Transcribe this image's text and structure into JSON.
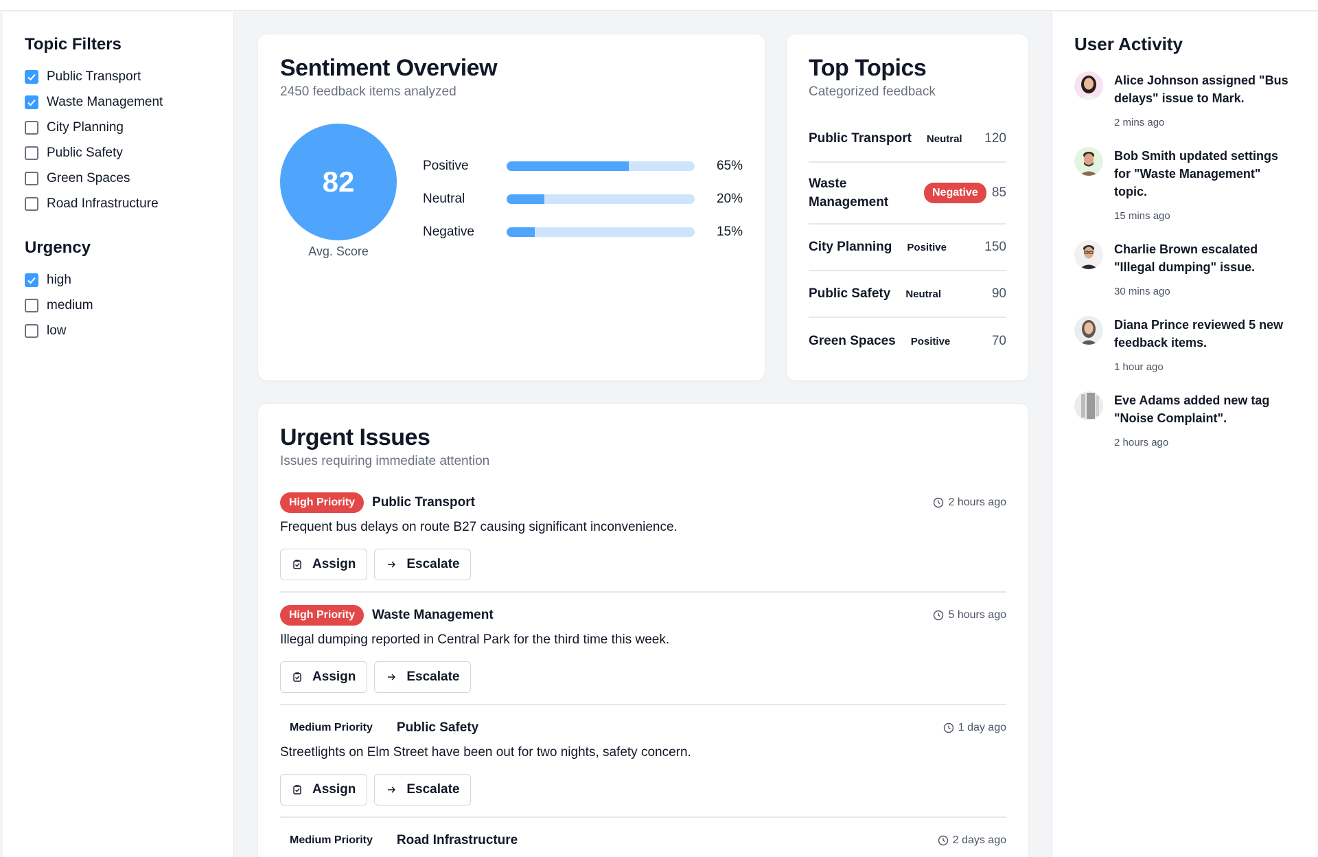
{
  "filters": {
    "topic_heading": "Topic Filters",
    "topics": [
      {
        "label": "Public Transport",
        "checked": true
      },
      {
        "label": "Waste Management",
        "checked": true
      },
      {
        "label": "City Planning",
        "checked": false
      },
      {
        "label": "Public Safety",
        "checked": false
      },
      {
        "label": "Green Spaces",
        "checked": false
      },
      {
        "label": "Road Infrastructure",
        "checked": false
      }
    ],
    "urgency_heading": "Urgency",
    "urgency": [
      {
        "label": "high",
        "checked": true
      },
      {
        "label": "medium",
        "checked": false
      },
      {
        "label": "low",
        "checked": false
      }
    ]
  },
  "sentiment": {
    "title": "Sentiment Overview",
    "subtitle": "2450 feedback items analyzed",
    "score": "82",
    "score_label": "Avg. Score",
    "bars": [
      {
        "label": "Positive",
        "value": 65,
        "pct": "65%"
      },
      {
        "label": "Neutral",
        "value": 20,
        "pct": "20%"
      },
      {
        "label": "Negative",
        "value": 15,
        "pct": "15%"
      }
    ]
  },
  "topics": {
    "title": "Top Topics",
    "subtitle": "Categorized feedback",
    "items": [
      {
        "name": "Public Transport",
        "sentiment": "Neutral",
        "count": "120"
      },
      {
        "name": "Waste Management",
        "sentiment": "Negative",
        "count": "85"
      },
      {
        "name": "City Planning",
        "sentiment": "Positive",
        "count": "150"
      },
      {
        "name": "Public Safety",
        "sentiment": "Neutral",
        "count": "90"
      },
      {
        "name": "Green Spaces",
        "sentiment": "Positive",
        "count": "70"
      }
    ]
  },
  "urgent": {
    "title": "Urgent Issues",
    "subtitle": "Issues requiring immediate attention",
    "assign_label": "Assign",
    "escalate_label": "Escalate",
    "issues": [
      {
        "priority": "High Priority",
        "topic": "Public Transport",
        "time": "2 hours ago",
        "desc": "Frequent bus delays on route B27 causing significant inconvenience."
      },
      {
        "priority": "High Priority",
        "topic": "Waste Management",
        "time": "5 hours ago",
        "desc": "Illegal dumping reported in Central Park for the third time this week."
      },
      {
        "priority": "Medium Priority",
        "topic": "Public Safety",
        "time": "1 day ago",
        "desc": "Streetlights on Elm Street have been out for two nights, safety concern."
      },
      {
        "priority": "Medium Priority",
        "topic": "Road Infrastructure",
        "time": "2 days ago",
        "desc": ""
      }
    ]
  },
  "activity": {
    "title": "User Activity",
    "items": [
      {
        "text": "Alice Johnson assigned \"Bus delays\" issue to Mark.",
        "time": "2 mins ago"
      },
      {
        "text": "Bob Smith updated settings for \"Waste Management\" topic.",
        "time": "15 mins ago"
      },
      {
        "text": "Charlie Brown escalated \"Illegal dumping\" issue.",
        "time": "30 mins ago"
      },
      {
        "text": "Diana Prince reviewed 5 new feedback items.",
        "time": "1 hour ago"
      },
      {
        "text": "Eve Adams added new tag \"Noise Complaint\".",
        "time": "2 hours ago"
      }
    ]
  },
  "colors": {
    "accent": "#4ea5fb",
    "negative": "#e24848",
    "track": "#cfe4fb"
  }
}
